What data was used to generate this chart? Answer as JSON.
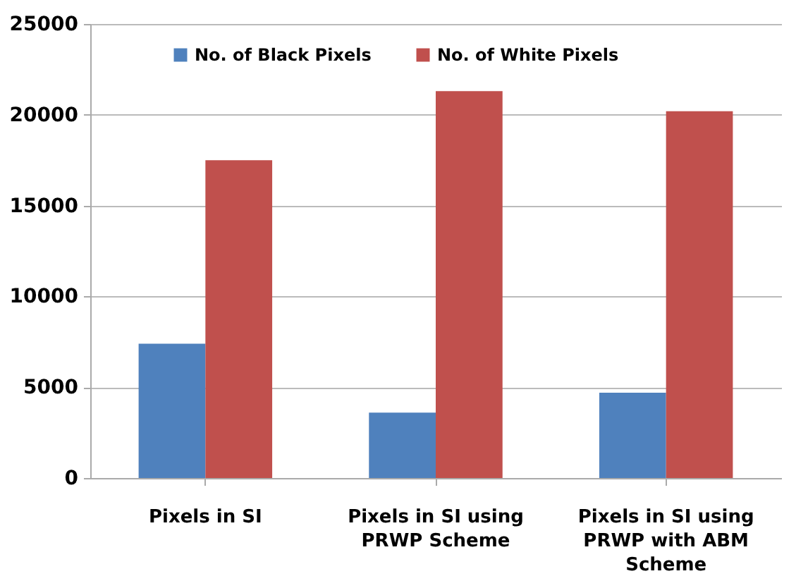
{
  "chart_data": {
    "type": "bar",
    "categories": [
      "Pixels in SI",
      "Pixels in SI using PRWP Scheme",
      "Pixels in SI using PRWP with ABM Scheme"
    ],
    "series": [
      {
        "name": "No. of Black Pixels",
        "color": "#4f81bd",
        "values": [
          7400,
          3600,
          4700
        ]
      },
      {
        "name": "No. of  White Pixels",
        "color": "#c0504d",
        "values": [
          17500,
          21300,
          20200
        ]
      }
    ],
    "ylim": [
      0,
      25000
    ],
    "yticks": [
      0,
      5000,
      10000,
      15000,
      20000,
      25000
    ],
    "grid": "y",
    "legend": "top"
  }
}
